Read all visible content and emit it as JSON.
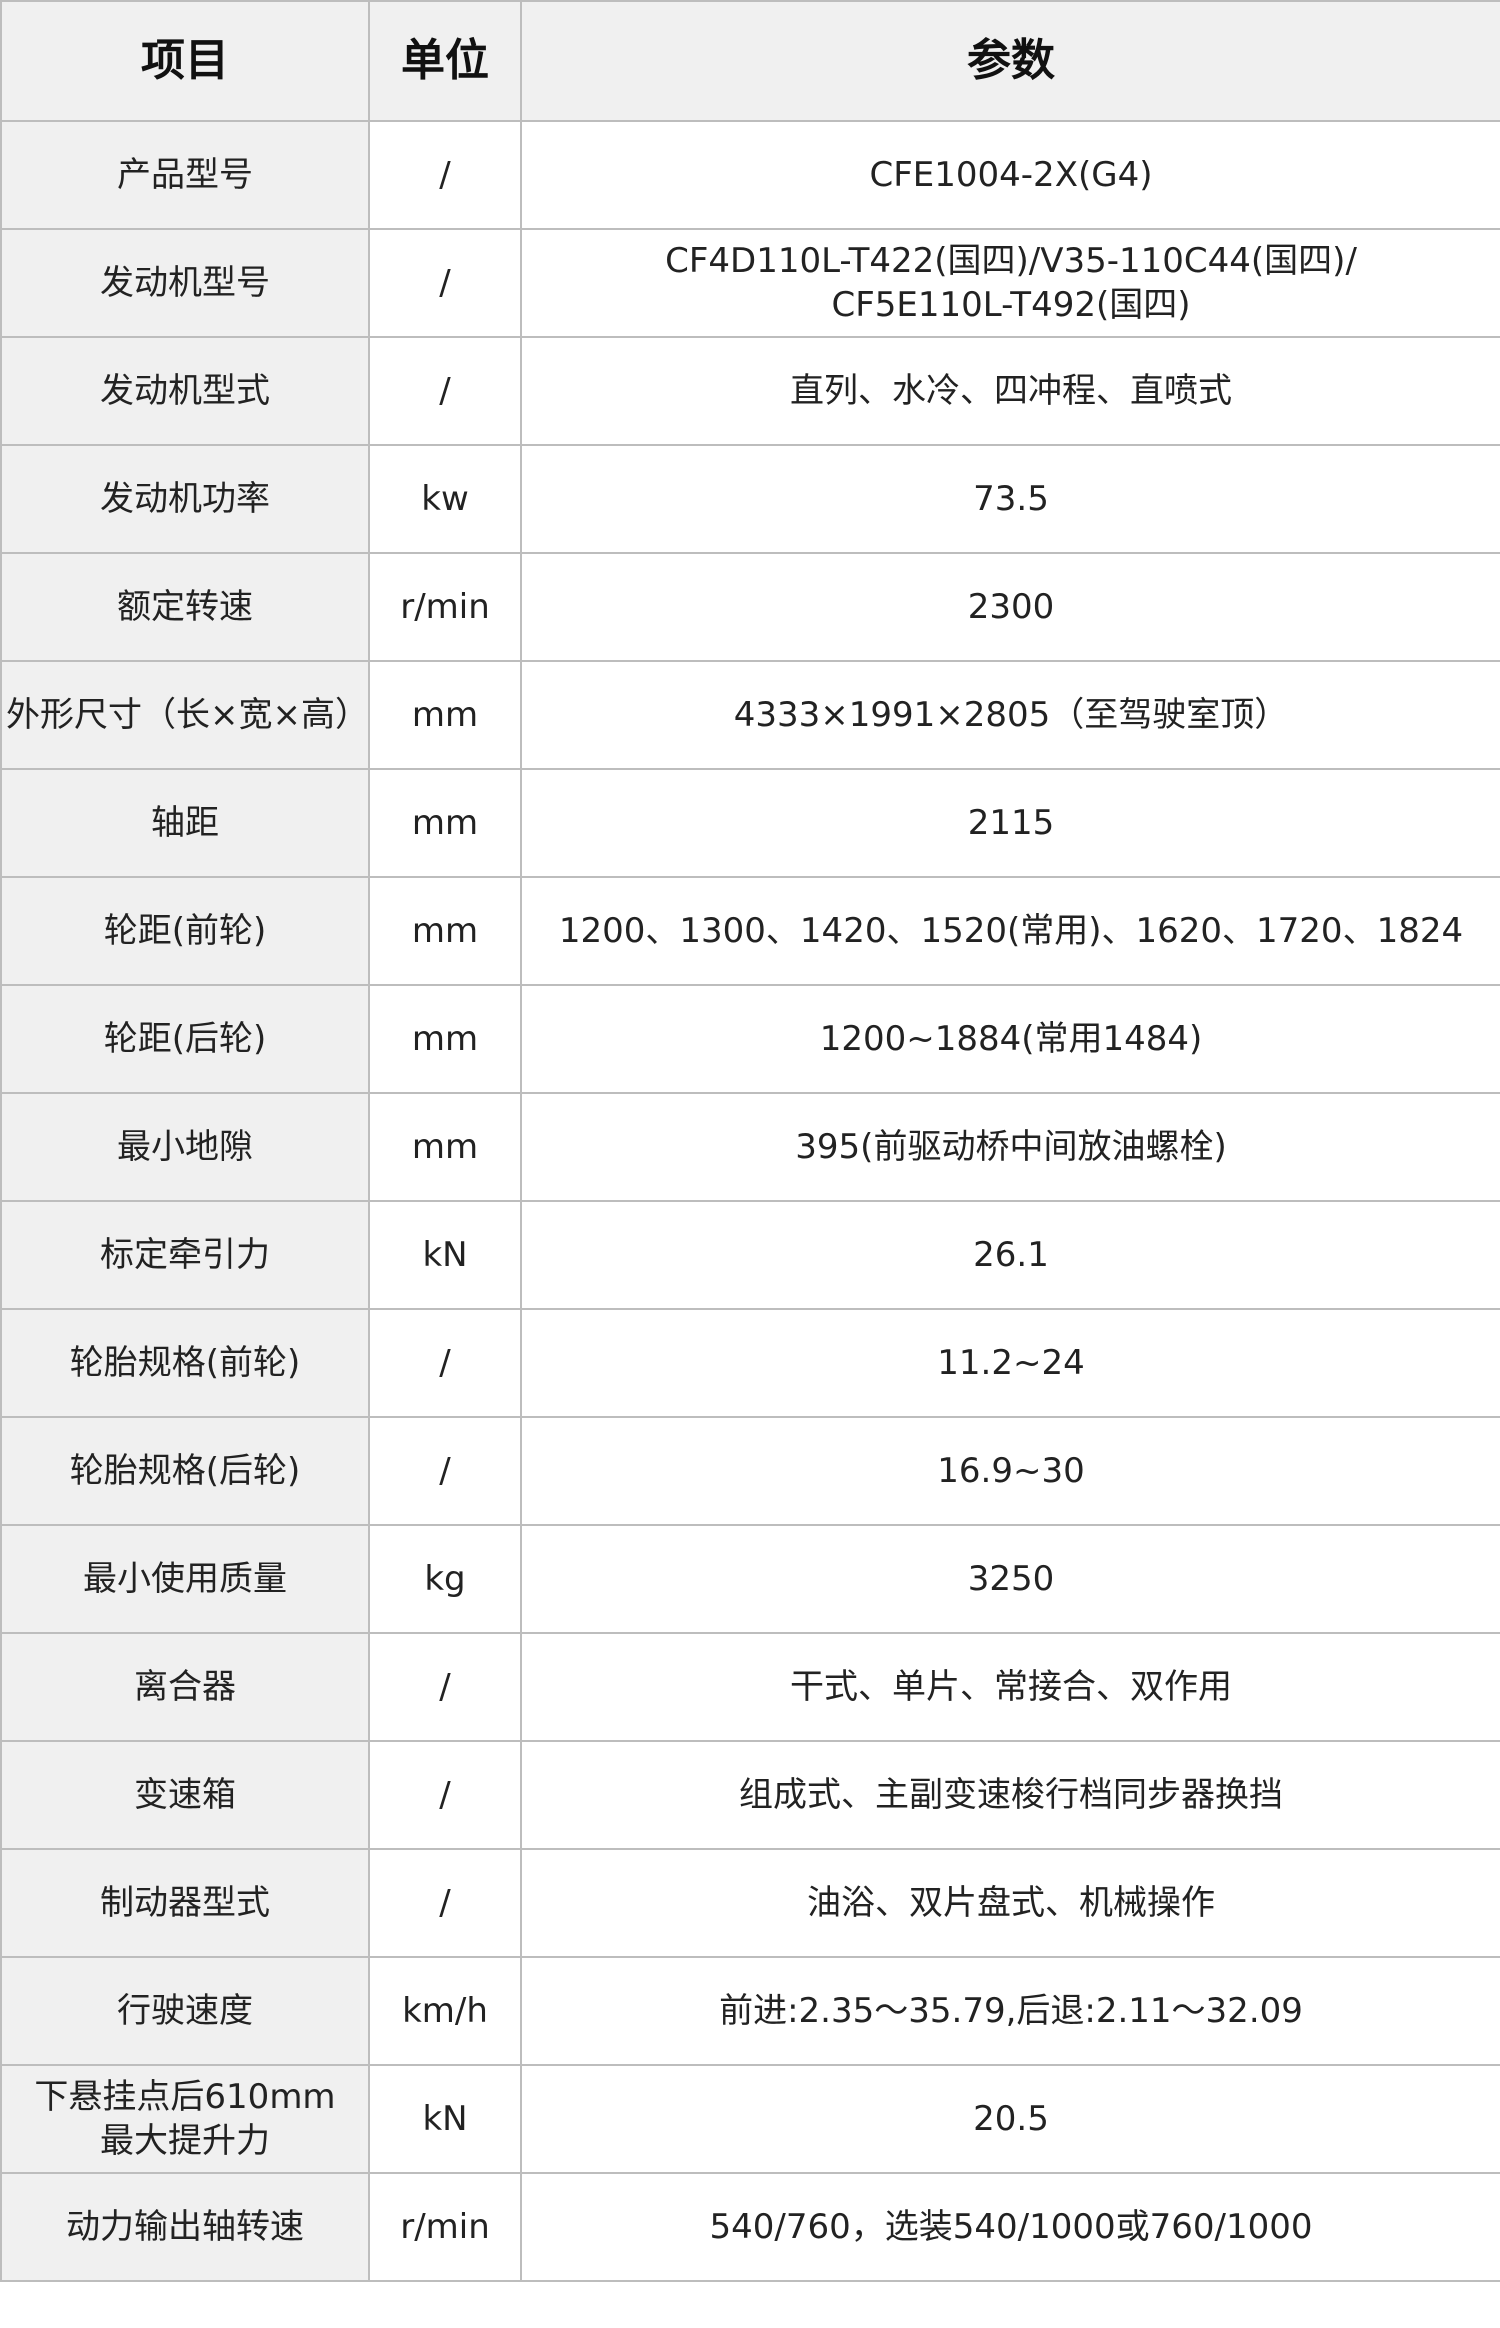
{
  "header": {
    "item": "项目",
    "unit": "单位",
    "param": "参数"
  },
  "rows": [
    {
      "item": "产品型号",
      "unit": "/",
      "value": "CFE1004-2X(G4)"
    },
    {
      "item": "发动机型号",
      "unit": "/",
      "value": "CF4D110L-T422(国四)/V35-110C44(国四)/",
      "value2": "CF5E110L-T492(国四)"
    },
    {
      "item": "发动机型式",
      "unit": "/",
      "value": "直列、水冷、四冲程、直喷式"
    },
    {
      "item": "发动机功率",
      "unit": "kw",
      "value": "73.5"
    },
    {
      "item": "额定转速",
      "unit": "r/min",
      "value": "2300"
    },
    {
      "item": "外形尺寸（长×宽×高）",
      "unit": "mm",
      "value": "4333×1991×2805（至驾驶室顶）"
    },
    {
      "item": "轴距",
      "unit": "mm",
      "value": "2115"
    },
    {
      "item": "轮距(前轮)",
      "unit": "mm",
      "value": "1200、1300、1420、1520(常用)、1620、1720、1824"
    },
    {
      "item": "轮距(后轮)",
      "unit": "mm",
      "value": "1200~1884(常用1484)"
    },
    {
      "item": "最小地隙",
      "unit": "mm",
      "value": "395(前驱动桥中间放油螺栓)"
    },
    {
      "item": "标定牵引力",
      "unit": "kN",
      "value": "26.1"
    },
    {
      "item": "轮胎规格(前轮)",
      "unit": "/",
      "value": "11.2~24"
    },
    {
      "item": "轮胎规格(后轮)",
      "unit": "/",
      "value": "16.9~30"
    },
    {
      "item": "最小使用质量",
      "unit": "kg",
      "value": "3250"
    },
    {
      "item": "离合器",
      "unit": "/",
      "value": "干式、单片、常接合、双作用"
    },
    {
      "item": "变速箱",
      "unit": "/",
      "value": "组成式、主副变速梭行档同步器换挡"
    },
    {
      "item": "制动器型式",
      "unit": "/",
      "value": "油浴、双片盘式、机械操作"
    },
    {
      "item": "行驶速度",
      "unit": "km/h",
      "value": "前进:2.35～35.79,后退:2.11～32.09"
    },
    {
      "item": "下悬挂点后610mm",
      "item2": "最大提升力",
      "unit": "kN",
      "value": "20.5"
    },
    {
      "item": "动力输出轴转速",
      "unit": "r/min",
      "value": "540/760，选装540/1000或760/1000"
    }
  ]
}
